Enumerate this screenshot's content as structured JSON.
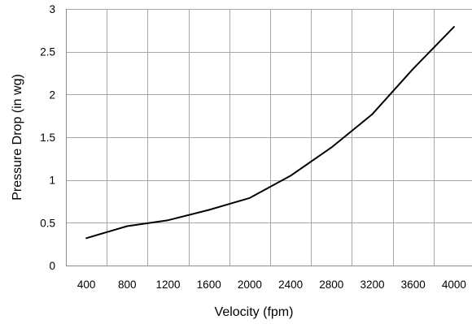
{
  "chart_data": {
    "type": "line",
    "title": "",
    "xlabel": "Velocity (fpm)",
    "ylabel": "Pressure Drop (in wg)",
    "x": [
      400,
      800,
      1200,
      1600,
      2000,
      2400,
      2800,
      3200,
      3600,
      4000
    ],
    "x_tick_labels": [
      "400",
      "800",
      "1200",
      "1600",
      "2000",
      "2400",
      "2800",
      "3200",
      "3600",
      "4000"
    ],
    "y_ticks": [
      0,
      0.5,
      1,
      1.5,
      2,
      2.5,
      3
    ],
    "y_tick_labels": [
      "0",
      "0.5",
      "1",
      "1.5",
      "2",
      "2.5",
      "3"
    ],
    "ylim": [
      0,
      3
    ],
    "grid": true,
    "series": [
      {
        "color": "#000000",
        "values": [
          0.32,
          0.46,
          0.53,
          0.65,
          0.79,
          1.05,
          1.38,
          1.77,
          2.3,
          2.79
        ]
      }
    ]
  }
}
